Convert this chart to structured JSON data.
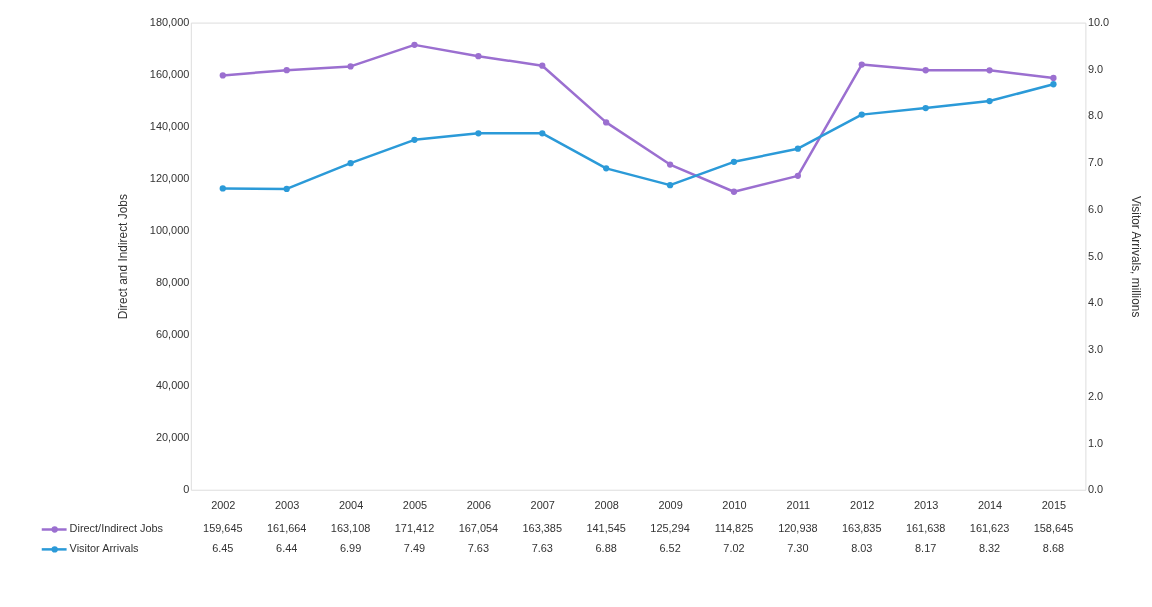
{
  "chart_data": {
    "type": "line",
    "categories": [
      "2002",
      "2003",
      "2004",
      "2005",
      "2006",
      "2007",
      "2008",
      "2009",
      "2010",
      "2011",
      "2012",
      "2013",
      "2014",
      "2015"
    ],
    "ylabel": "Direct and Indirect Jobs",
    "y2label": "Visitor Arrivals, millions",
    "ylim": [
      0,
      180000
    ],
    "yticks": [
      0,
      {
        "value": 20000,
        "label": "20,000"
      },
      {
        "value": 40000,
        "label": "40,000"
      },
      {
        "value": 60000,
        "label": "60,000"
      },
      {
        "value": 80000,
        "label": "80,000"
      },
      {
        "value": 100000,
        "label": "100,000"
      },
      {
        "value": 120000,
        "label": "120,000"
      },
      {
        "value": 140000,
        "label": "140,000"
      },
      {
        "value": 160000,
        "label": "160,000"
      },
      {
        "value": 180000,
        "label": "180,000"
      }
    ],
    "y2lim": [
      0,
      10
    ],
    "y2ticks": [
      {
        "value": 0,
        "label": "0.0"
      },
      {
        "value": 1,
        "label": "1.0"
      },
      {
        "value": 2,
        "label": "2.0"
      },
      {
        "value": 3,
        "label": "3.0"
      },
      {
        "value": 4,
        "label": "4.0"
      },
      {
        "value": 5,
        "label": "5.0"
      },
      {
        "value": 6,
        "label": "6.0"
      },
      {
        "value": 7,
        "label": "7.0"
      },
      {
        "value": 8,
        "label": "8.0"
      },
      {
        "value": 9,
        "label": "9.0"
      },
      {
        "value": 10,
        "label": "10.0"
      }
    ],
    "series": [
      {
        "name": "Direct/Indirect Jobs",
        "color": "#9b6fd0",
        "values": [
          159645,
          161664,
          163108,
          171412,
          167054,
          163385,
          141545,
          125294,
          114825,
          120938,
          163835,
          161638,
          161623,
          158645
        ],
        "value_labels": [
          "159,645",
          "161,664",
          "163,108",
          "171,412",
          "167,054",
          "163,385",
          "141,545",
          "125,294",
          "114,825",
          "120,938",
          "163,835",
          "161,638",
          "161,623",
          "158,645"
        ]
      },
      {
        "name": "Visitor Arrivals",
        "color": "#2b9ad8",
        "axis": "y2",
        "values": [
          6.45,
          6.44,
          6.99,
          7.49,
          7.63,
          7.63,
          6.88,
          6.52,
          7.02,
          7.3,
          8.03,
          8.17,
          8.32,
          8.68
        ],
        "value_labels": [
          "6.45",
          "6.44",
          "6.99",
          "7.49",
          "7.63",
          "7.63",
          "6.88",
          "6.52",
          "7.02",
          "7.30",
          "8.03",
          "8.17",
          "8.32",
          "8.68"
        ]
      }
    ],
    "marker": "circle",
    "grid": false,
    "legend": "bottom left"
  }
}
